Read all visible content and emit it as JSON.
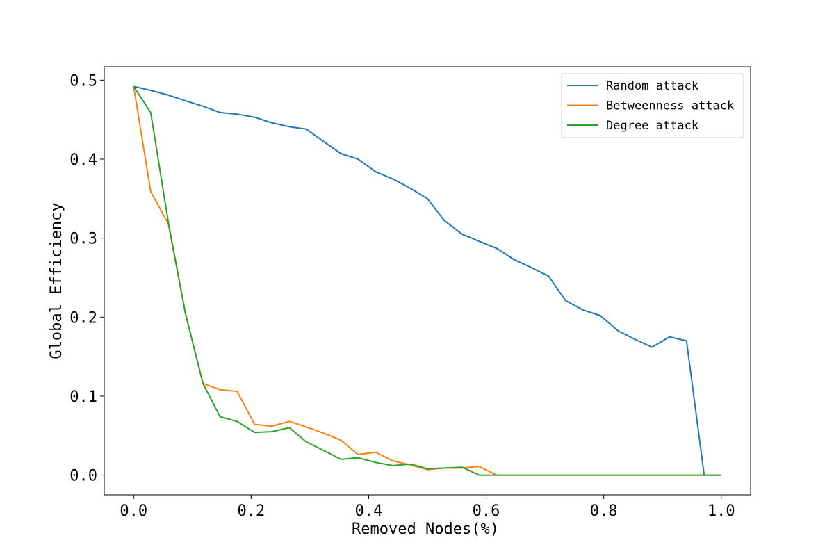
{
  "chart_data": {
    "type": "line",
    "title": "",
    "xlabel": "Removed Nodes(%)",
    "ylabel": "Global Efficiency",
    "xlim": [
      -0.05,
      1.05
    ],
    "ylim": [
      -0.025,
      0.517
    ],
    "xticks": [
      0.0,
      0.2,
      0.4,
      0.6,
      0.8,
      1.0
    ],
    "xtick_labels": [
      "0.0",
      "0.2",
      "0.4",
      "0.6",
      "0.8",
      "1.0"
    ],
    "yticks": [
      0.0,
      0.1,
      0.2,
      0.3,
      0.4,
      0.5
    ],
    "ytick_labels": [
      "0.0",
      "0.1",
      "0.2",
      "0.3",
      "0.4",
      "0.5"
    ],
    "grid": false,
    "legend_position": "top-right",
    "series": [
      {
        "name": "Random attack",
        "color": "#1f77b4",
        "x": [
          0.0,
          0.029,
          0.059,
          0.088,
          0.118,
          0.147,
          0.176,
          0.206,
          0.235,
          0.265,
          0.294,
          0.324,
          0.353,
          0.382,
          0.412,
          0.441,
          0.471,
          0.5,
          0.529,
          0.559,
          0.588,
          0.618,
          0.647,
          0.676,
          0.706,
          0.735,
          0.765,
          0.794,
          0.824,
          0.853,
          0.882,
          0.912,
          0.941,
          0.971,
          1.0
        ],
        "y": [
          0.492,
          0.487,
          0.481,
          0.474,
          0.467,
          0.459,
          0.457,
          0.453,
          0.446,
          0.441,
          0.438,
          0.422,
          0.407,
          0.4,
          0.384,
          0.375,
          0.363,
          0.35,
          0.322,
          0.305,
          0.296,
          0.287,
          0.273,
          0.263,
          0.252,
          0.221,
          0.209,
          0.202,
          0.183,
          0.172,
          0.162,
          0.175,
          0.17,
          0.0,
          0.0
        ]
      },
      {
        "name": "Betweenness attack",
        "color": "#ff7f0e",
        "x": [
          0.0,
          0.029,
          0.059,
          0.088,
          0.118,
          0.147,
          0.176,
          0.206,
          0.235,
          0.265,
          0.294,
          0.324,
          0.353,
          0.382,
          0.412,
          0.441,
          0.471,
          0.5,
          0.529,
          0.559,
          0.588,
          0.618,
          0.647,
          0.676,
          0.706,
          0.735,
          0.765,
          0.794,
          0.824,
          0.853,
          0.882,
          0.912,
          0.941,
          0.971,
          1.0
        ],
        "y": [
          0.492,
          0.359,
          0.318,
          0.205,
          0.116,
          0.108,
          0.106,
          0.064,
          0.062,
          0.068,
          0.061,
          0.053,
          0.044,
          0.026,
          0.029,
          0.018,
          0.013,
          0.007,
          0.009,
          0.009,
          0.011,
          0.0,
          0.0,
          0.0,
          0.0,
          0.0,
          0.0,
          0.0,
          0.0,
          0.0,
          0.0,
          0.0,
          0.0,
          0.0,
          0.0
        ]
      },
      {
        "name": "Degree attack",
        "color": "#2ca02c",
        "x": [
          0.0,
          0.029,
          0.059,
          0.088,
          0.118,
          0.147,
          0.176,
          0.206,
          0.235,
          0.265,
          0.294,
          0.324,
          0.353,
          0.382,
          0.412,
          0.441,
          0.471,
          0.5,
          0.529,
          0.559,
          0.588,
          0.618,
          0.647,
          0.676,
          0.706,
          0.735,
          0.765,
          0.794,
          0.824,
          0.853,
          0.882,
          0.912,
          0.941,
          0.971,
          1.0
        ],
        "y": [
          0.492,
          0.459,
          0.32,
          0.205,
          0.116,
          0.074,
          0.068,
          0.054,
          0.055,
          0.06,
          0.042,
          0.031,
          0.02,
          0.022,
          0.016,
          0.012,
          0.014,
          0.008,
          0.009,
          0.01,
          0.0,
          0.0,
          0.0,
          0.0,
          0.0,
          0.0,
          0.0,
          0.0,
          0.0,
          0.0,
          0.0,
          0.0,
          0.0,
          0.0,
          0.0
        ]
      }
    ]
  }
}
